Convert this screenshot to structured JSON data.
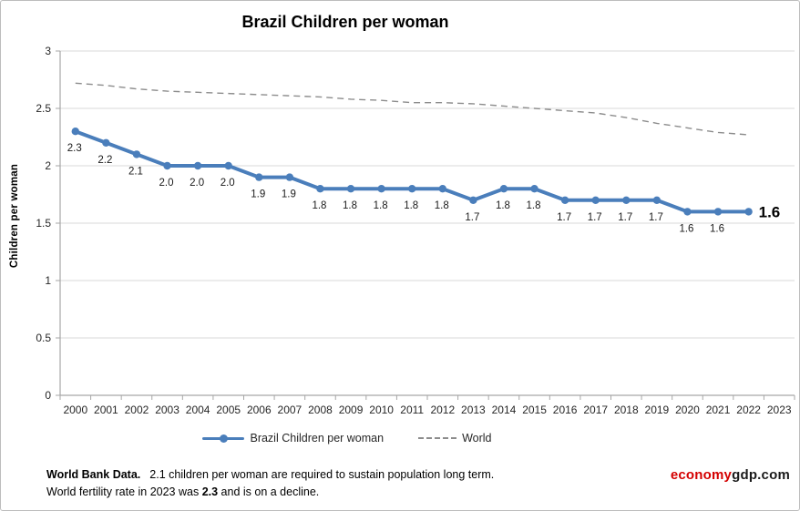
{
  "title": "Brazil Children per woman",
  "y_axis_title": "Children  per woman",
  "legend": {
    "brazil_label": "Brazil Children per woman",
    "world_label": "World"
  },
  "footer": {
    "source_bold": "World Bank Data.",
    "line1": "2.1 children per woman are required to sustain population long term.",
    "line2_prefix": "World fertility rate in 2023 was ",
    "line2_bold": "2.3",
    "line2_suffix": " and is on a decline."
  },
  "logo": {
    "economy": "economy",
    "gdp": "gdp.com",
    "economy_color": "#d40000",
    "gdp_color": "#1a1a1a"
  },
  "colors": {
    "brazil_line": "#4a7ebb",
    "world_line": "#8c8c8c",
    "gridline": "#d9d9d9",
    "axis": "#a6a6a6",
    "tick_text": "#262626",
    "data_label": "#1a1a1a"
  },
  "chart_data": {
    "type": "line",
    "title": "Brazil Children per woman",
    "xlabel": "",
    "ylabel": "Children per woman",
    "ylim": [
      0,
      3
    ],
    "yticks": [
      0,
      0.5,
      1,
      1.5,
      2,
      2.5,
      3
    ],
    "ytick_labels": [
      "0",
      "0.5",
      "1",
      "1.5",
      "2",
      "2.5",
      "3"
    ],
    "grid": true,
    "legend_position": "bottom",
    "categories": [
      "2000",
      "2001",
      "2002",
      "2003",
      "2004",
      "2005",
      "2006",
      "2007",
      "2008",
      "2009",
      "2010",
      "2011",
      "2012",
      "2013",
      "2014",
      "2015",
      "2016",
      "2017",
      "2018",
      "2019",
      "2020",
      "2021",
      "2022",
      "2023"
    ],
    "series": [
      {
        "name": "Brazil Children per woman",
        "style": "solid-with-markers",
        "values": [
          2.3,
          2.2,
          2.1,
          2.0,
          2.0,
          2.0,
          1.9,
          1.9,
          1.8,
          1.8,
          1.8,
          1.8,
          1.8,
          1.7,
          1.8,
          1.8,
          1.7,
          1.7,
          1.7,
          1.7,
          1.6,
          1.6,
          1.6,
          null
        ],
        "labels": [
          "2.3",
          "2.2",
          "2.1",
          "2.0",
          "2.0",
          "2.0",
          "1.9",
          "1.9",
          "1.8",
          "1.8",
          "1.8",
          "1.8",
          "1.8",
          "1.7",
          "1.8",
          "1.8",
          "1.7",
          "1.7",
          "1.7",
          "1.7",
          "1.6",
          "1.6",
          "1.6"
        ]
      },
      {
        "name": "World",
        "style": "dashed",
        "values": [
          2.72,
          2.7,
          2.67,
          2.65,
          2.64,
          2.63,
          2.62,
          2.61,
          2.6,
          2.58,
          2.57,
          2.55,
          2.55,
          2.54,
          2.52,
          2.5,
          2.48,
          2.46,
          2.42,
          2.37,
          2.33,
          2.29,
          2.27,
          null
        ]
      }
    ],
    "final_label": "1.6"
  }
}
